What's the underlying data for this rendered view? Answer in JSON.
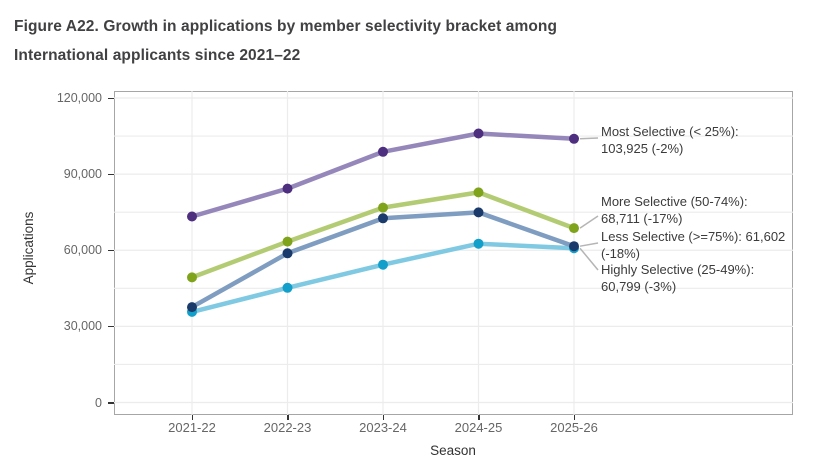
{
  "figure": {
    "title_line1": "Figure A22. Growth in applications by member selectivity bracket among",
    "title_line2": "International applicants since 2021–22"
  },
  "chart_data": {
    "type": "line",
    "title": "Figure A22. Growth in applications by member selectivity bracket among International applicants since 2021–22",
    "xlabel": "Season",
    "ylabel": "Applications",
    "categories": [
      "2021-22",
      "2022-23",
      "2023-24",
      "2024-25",
      "2025-26"
    ],
    "ylim": [
      0,
      120000
    ],
    "y_ticks": [
      {
        "value": 0,
        "label": "0"
      },
      {
        "value": 30000,
        "label": "30,000"
      },
      {
        "value": 60000,
        "label": "60,000"
      },
      {
        "value": 90000,
        "label": "90,000"
      },
      {
        "value": 120000,
        "label": "120,000"
      }
    ],
    "grid": {
      "horizontal_minor_step": 15000,
      "vertical_at_categories": true,
      "color": "#ececec"
    },
    "legend_position": "right-annotations",
    "series": [
      {
        "name": "Most Selective (< 25%)",
        "values": [
          73300,
          84300,
          98800,
          106000,
          103925
        ],
        "final_value": "103,925",
        "final_change": "-2%",
        "line_color": "#9687bb",
        "marker_color": "#4d2e7f"
      },
      {
        "name": "More Selective (50-74%)",
        "values": [
          49300,
          63400,
          76800,
          82800,
          68711
        ],
        "final_value": "68,711",
        "final_change": "-17%",
        "line_color": "#b3cb72",
        "marker_color": "#7fa41c"
      },
      {
        "name": "Less Selective (>=75%)",
        "values": [
          37600,
          58800,
          72600,
          74900,
          61602
        ],
        "final_value": "61,602",
        "final_change": "-18%",
        "line_color": "#7e9dc0",
        "marker_color": "#1a3a6b"
      },
      {
        "name": "Highly Selective (25-49%)",
        "values": [
          35700,
          45200,
          54300,
          62600,
          60799
        ],
        "final_value": "60,799",
        "final_change": "-3%",
        "line_color": "#7fc9e2",
        "marker_color": "#129fc9"
      }
    ],
    "annotations": [
      {
        "series": "most-selective",
        "lines": [
          "Most Selective (< 25%):",
          "103,925 (-2%)"
        ]
      },
      {
        "series": "more-selective",
        "lines": [
          "More Selective (50-74%):",
          "68,711 (-17%)"
        ]
      },
      {
        "series": "less-selective",
        "lines": [
          "Less Selective (>=75%): 61,602",
          "(-18%)"
        ]
      },
      {
        "series": "highly-selective",
        "lines": [
          "Highly Selective (25-49%):",
          "60,799 (-3%)"
        ]
      }
    ],
    "colors": {
      "title_text": "#414042",
      "axis_text": "#333333",
      "tick_text": "#666666",
      "panel_border": "#a6a6a6",
      "gridline": "#ececec",
      "leader_line": "#b5b5b5",
      "annotation_text": "#3b3b3b"
    }
  }
}
